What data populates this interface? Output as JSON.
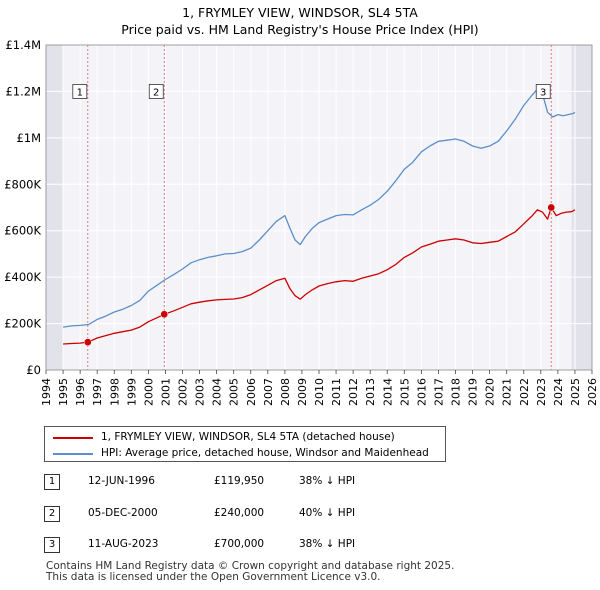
{
  "title_line1": "1, FRYMLEY VIEW, WINDSOR, SL4 5TA",
  "title_line2": "Price paid vs. HM Land Registry's House Price Index (HPI)",
  "chart_data": {
    "type": "line",
    "title": "1, FRYMLEY VIEW, WINDSOR, SL4 5TA - Price paid vs. HM Land Registry's House Price Index (HPI)",
    "xlabel": "",
    "ylabel": "",
    "xlim": [
      1994,
      2026
    ],
    "ylim": [
      0,
      1400000
    ],
    "x_ticks": [
      "1994",
      "1995",
      "1996",
      "1997",
      "1998",
      "1999",
      "2000",
      "2001",
      "2002",
      "2003",
      "2004",
      "2005",
      "2006",
      "2007",
      "2008",
      "2009",
      "2010",
      "2011",
      "2012",
      "2013",
      "2014",
      "2015",
      "2016",
      "2017",
      "2018",
      "2019",
      "2020",
      "2021",
      "2022",
      "2023",
      "2024",
      "2025",
      "2026"
    ],
    "y_ticks": [
      {
        "value": 0,
        "label": "£0"
      },
      {
        "value": 200000,
        "label": "£200K"
      },
      {
        "value": 400000,
        "label": "£400K"
      },
      {
        "value": 600000,
        "label": "£600K"
      },
      {
        "value": 800000,
        "label": "£800K"
      },
      {
        "value": 1000000,
        "label": "£1M"
      },
      {
        "value": 1200000,
        "label": "£1.2M"
      },
      {
        "value": 1400000,
        "label": "£1.4M"
      }
    ],
    "grid": true,
    "series": [
      {
        "name": "1, FRYMLEY VIEW, WINDSOR, SL4 5TA (detached house)",
        "color": "#cc0000",
        "x": [
          1995.0,
          1995.5,
          1996.0,
          1996.45,
          1997.0,
          1997.5,
          1998.0,
          1998.5,
          1999.0,
          1999.5,
          2000.0,
          2000.5,
          2000.93,
          2001.5,
          2002.0,
          2002.5,
          2003.0,
          2003.5,
          2004.0,
          2004.5,
          2005.0,
          2005.5,
          2006.0,
          2006.5,
          2007.0,
          2007.5,
          2008.0,
          2008.3,
          2008.6,
          2008.9,
          2009.2,
          2009.6,
          2010.0,
          2010.5,
          2011.0,
          2011.5,
          2012.0,
          2012.5,
          2013.0,
          2013.5,
          2014.0,
          2014.5,
          2015.0,
          2015.5,
          2016.0,
          2016.5,
          2017.0,
          2017.5,
          2018.0,
          2018.5,
          2019.0,
          2019.5,
          2020.0,
          2020.5,
          2021.0,
          2021.5,
          2022.0,
          2022.5,
          2022.8,
          2023.1,
          2023.4,
          2023.61,
          2023.9,
          2024.2,
          2024.5,
          2024.8,
          2025.0
        ],
        "values": [
          112000,
          114000,
          116000,
          119950,
          138000,
          148000,
          158000,
          165000,
          172000,
          185000,
          208000,
          225000,
          240000,
          255000,
          270000,
          285000,
          292000,
          298000,
          302000,
          304000,
          306000,
          312000,
          325000,
          345000,
          365000,
          385000,
          395000,
          350000,
          320000,
          305000,
          325000,
          345000,
          362000,
          372000,
          380000,
          385000,
          382000,
          395000,
          405000,
          415000,
          432000,
          455000,
          485000,
          505000,
          530000,
          542000,
          555000,
          560000,
          565000,
          560000,
          548000,
          545000,
          550000,
          555000,
          575000,
          595000,
          630000,
          665000,
          690000,
          680000,
          650000,
          700000,
          665000,
          675000,
          680000,
          682000,
          690000
        ]
      },
      {
        "name": "HPI: Average price, detached house, Windsor and Maidenhead",
        "color": "#5b8fc9",
        "x": [
          1995.0,
          1995.5,
          1996.0,
          1996.5,
          1997.0,
          1997.5,
          1998.0,
          1998.5,
          1999.0,
          1999.5,
          2000.0,
          2000.5,
          2001.0,
          2001.5,
          2002.0,
          2002.5,
          2003.0,
          2003.5,
          2004.0,
          2004.5,
          2005.0,
          2005.5,
          2006.0,
          2006.5,
          2007.0,
          2007.5,
          2008.0,
          2008.3,
          2008.6,
          2008.9,
          2009.2,
          2009.6,
          2010.0,
          2010.5,
          2011.0,
          2011.5,
          2012.0,
          2012.5,
          2013.0,
          2013.5,
          2014.0,
          2014.5,
          2015.0,
          2015.5,
          2016.0,
          2016.5,
          2017.0,
          2017.5,
          2018.0,
          2018.5,
          2019.0,
          2019.5,
          2020.0,
          2020.5,
          2021.0,
          2021.5,
          2022.0,
          2022.5,
          2022.8,
          2023.1,
          2023.4,
          2023.7,
          2024.0,
          2024.3,
          2024.6,
          2024.9,
          2025.0
        ],
        "values": [
          185000,
          190000,
          192000,
          196000,
          218000,
          232000,
          250000,
          262000,
          278000,
          300000,
          340000,
          365000,
          390000,
          412000,
          435000,
          462000,
          475000,
          485000,
          492000,
          500000,
          502000,
          510000,
          525000,
          560000,
          600000,
          640000,
          665000,
          610000,
          560000,
          540000,
          575000,
          610000,
          635000,
          650000,
          665000,
          670000,
          668000,
          690000,
          710000,
          735000,
          770000,
          815000,
          865000,
          895000,
          940000,
          965000,
          985000,
          990000,
          995000,
          985000,
          965000,
          955000,
          965000,
          985000,
          1030000,
          1080000,
          1140000,
          1185000,
          1210000,
          1190000,
          1110000,
          1090000,
          1100000,
          1095000,
          1100000,
          1105000,
          1110000
        ]
      }
    ],
    "sale_markers": [
      {
        "label": "1",
        "x": 1996.45,
        "value": 119950
      },
      {
        "label": "2",
        "x": 2000.93,
        "value": 240000
      },
      {
        "label": "3",
        "x": 2023.61,
        "value": 700000
      }
    ],
    "shaded_regions": [
      [
        1994,
        1995
      ],
      [
        2024.8,
        2026
      ]
    ],
    "legend_position": "below"
  },
  "legend": {
    "property_label": "1, FRYMLEY VIEW, WINDSOR, SL4 5TA (detached house)",
    "hpi_label": "HPI: Average price, detached house, Windsor and Maidenhead",
    "property_color": "#cc0000",
    "hpi_color": "#5b8fc9"
  },
  "sales": [
    {
      "num": "1",
      "date": "12-JUN-1996",
      "price": "£119,950",
      "hpi": "38% ↓ HPI"
    },
    {
      "num": "2",
      "date": "05-DEC-2000",
      "price": "£240,000",
      "hpi": "40% ↓ HPI"
    },
    {
      "num": "3",
      "date": "11-AUG-2023",
      "price": "£700,000",
      "hpi": "38% ↓ HPI"
    }
  ],
  "footer": {
    "line1": "Contains HM Land Registry data © Crown copyright and database right 2025.",
    "line2": "This data is licensed under the Open Government Licence v3.0."
  }
}
